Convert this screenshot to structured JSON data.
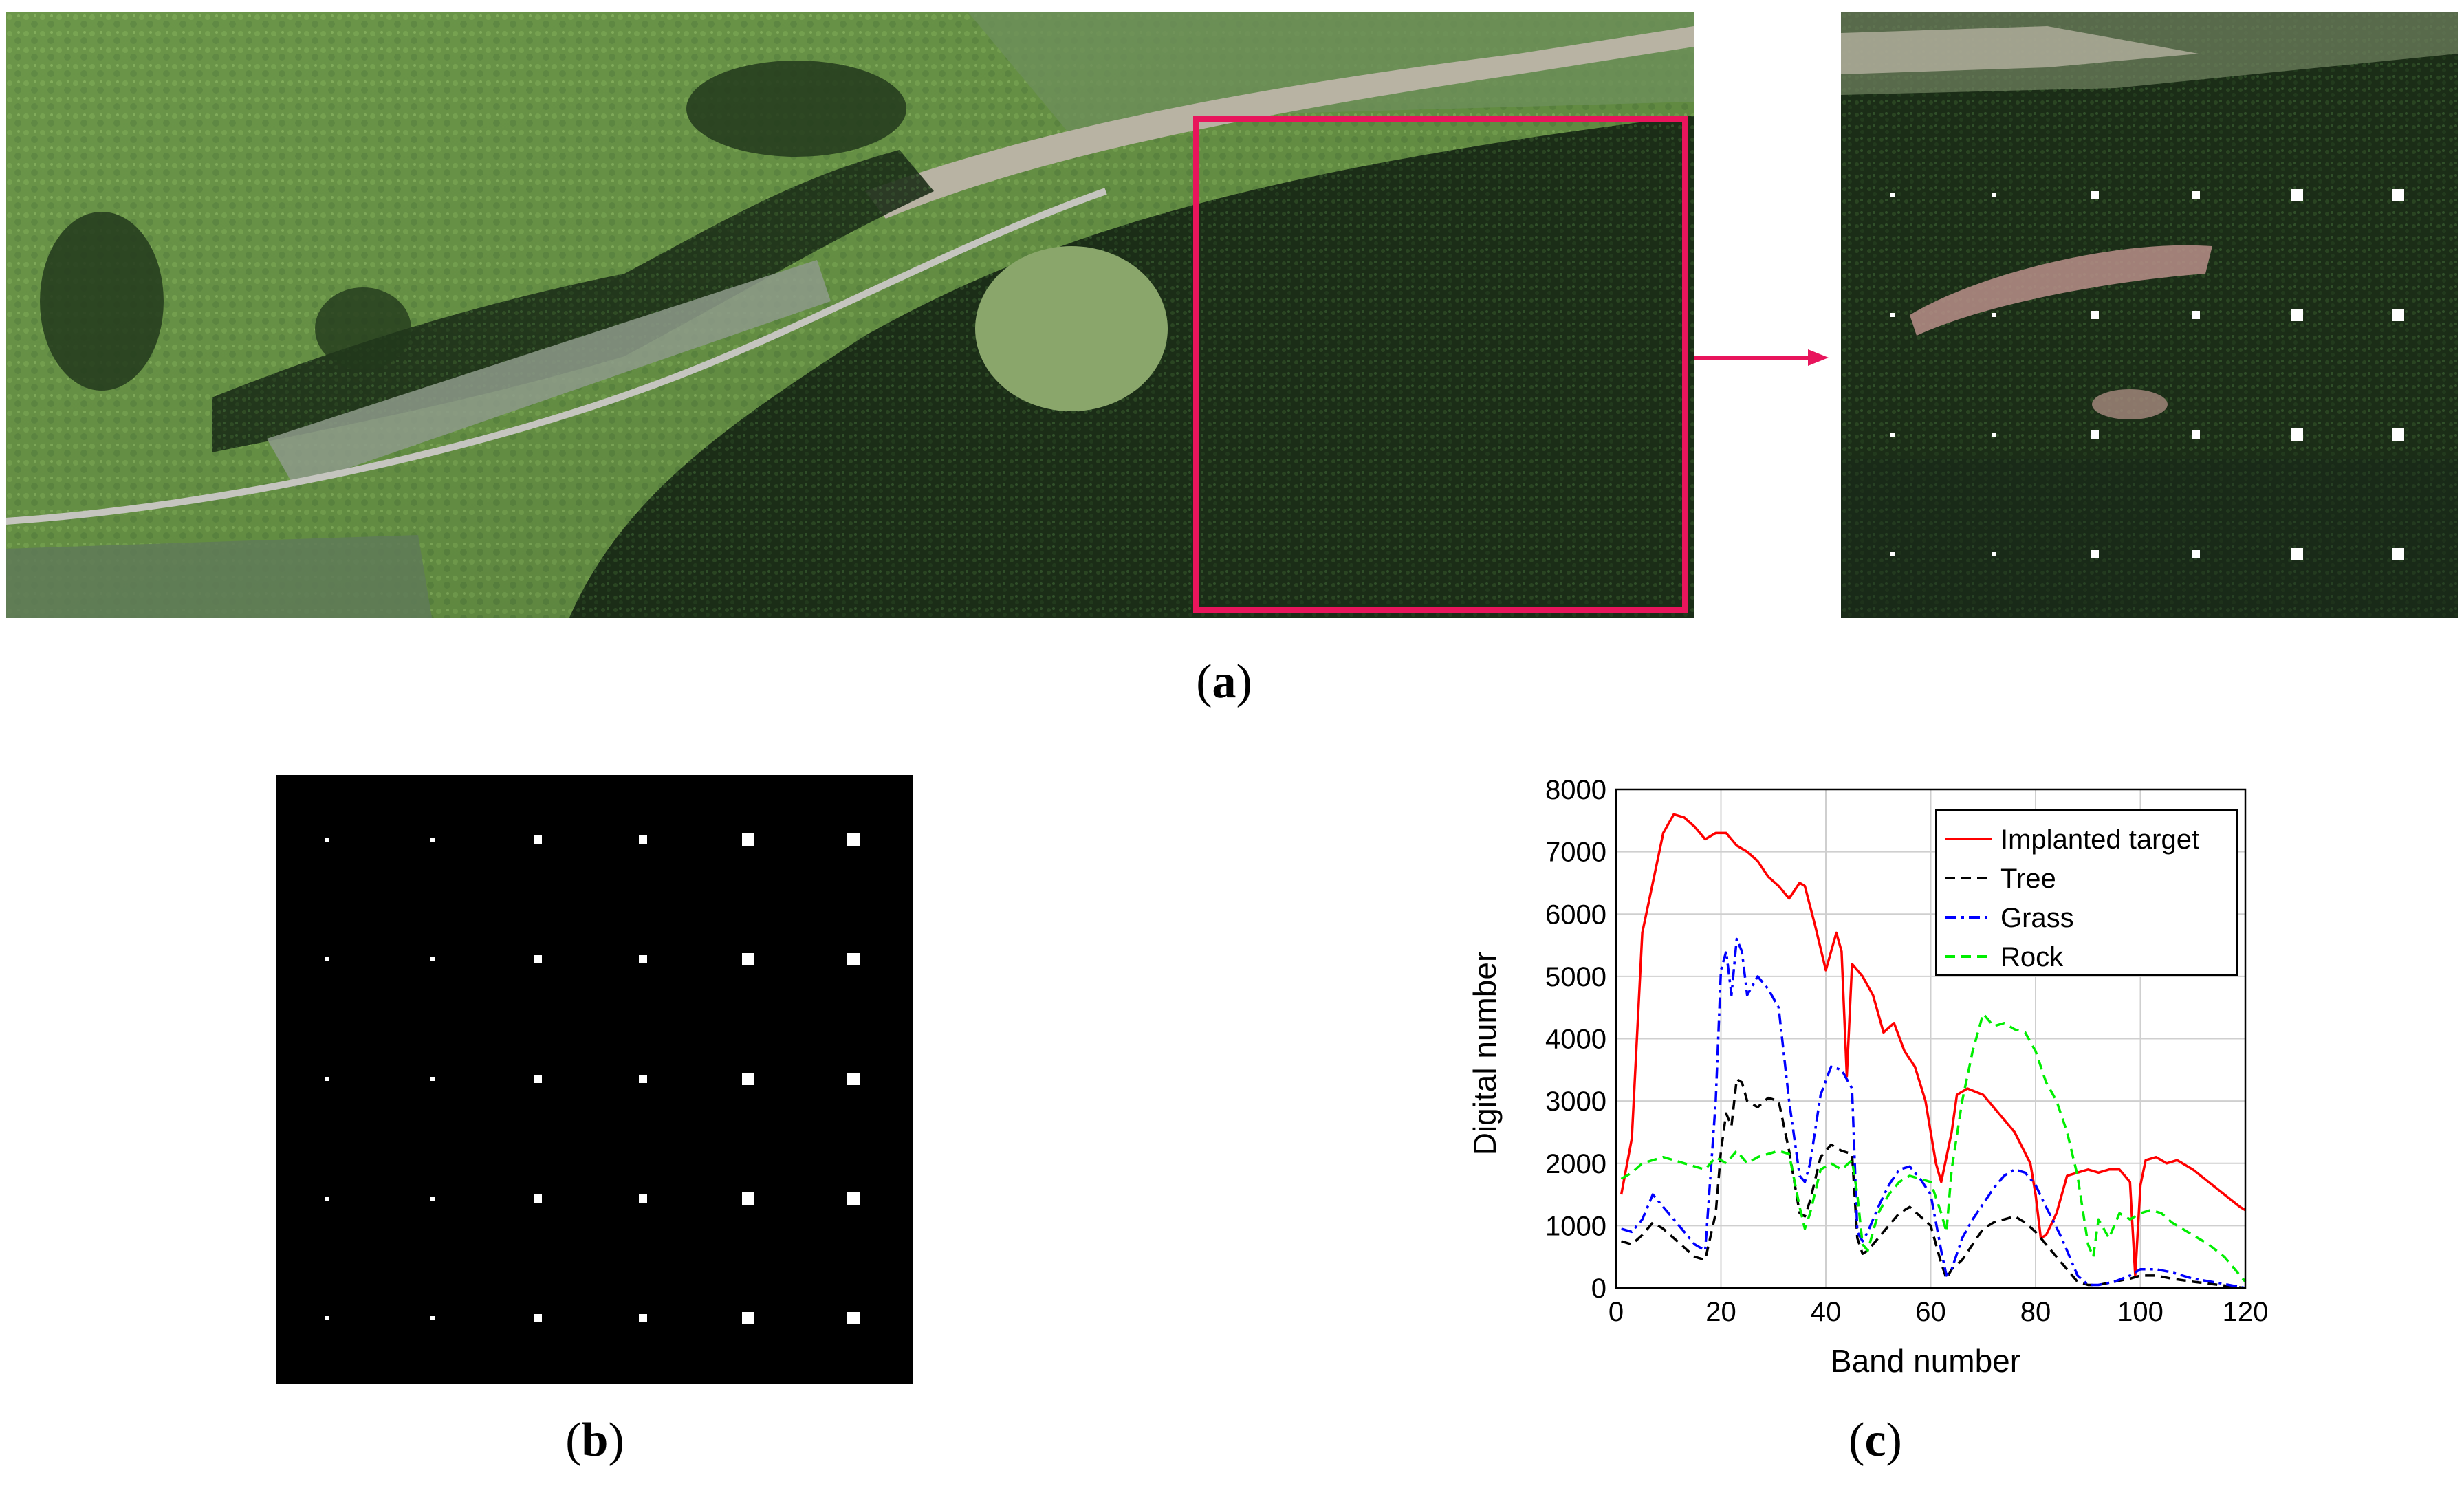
{
  "figure": {
    "panel_a_label": "a",
    "panel_b_label": "b",
    "panel_c_label": "c",
    "highlight_color": "#e8155c",
    "target_grid": {
      "rows": 5,
      "cols": 6,
      "sizes": [
        1,
        1,
        2,
        2,
        3,
        3
      ]
    }
  },
  "chart_data": {
    "type": "line",
    "xlabel": "Band number",
    "ylabel": "Digital number",
    "xlim": [
      0,
      120
    ],
    "ylim": [
      0,
      8000
    ],
    "xticks": [
      0,
      20,
      40,
      60,
      80,
      100,
      120
    ],
    "yticks": [
      0,
      1000,
      2000,
      3000,
      4000,
      5000,
      6000,
      7000,
      8000
    ],
    "grid": true,
    "legend_position": "top-right",
    "series": [
      {
        "name": "Implanted target",
        "color": "#ff0000",
        "dash": "solid",
        "x": [
          1,
          3,
          5,
          7,
          9,
          11,
          13,
          15,
          17,
          19,
          21,
          23,
          25,
          27,
          29,
          31,
          33,
          35,
          36,
          38,
          40,
          42,
          43,
          44,
          45,
          47,
          49,
          51,
          53,
          55,
          57,
          59,
          61,
          62,
          63,
          64,
          65,
          67,
          70,
          73,
          76,
          79,
          80,
          81,
          82,
          84,
          86,
          88,
          90,
          92,
          94,
          96,
          98,
          99,
          100,
          101,
          103,
          105,
          107,
          110,
          113,
          116,
          119,
          120
        ],
        "values": [
          1500,
          2400,
          5700,
          6500,
          7300,
          7600,
          7550,
          7400,
          7200,
          7300,
          7300,
          7100,
          7000,
          6850,
          6600,
          6450,
          6250,
          6500,
          6450,
          5800,
          5100,
          5700,
          5400,
          3400,
          5200,
          5000,
          4700,
          4100,
          4250,
          3800,
          3550,
          3000,
          2000,
          1700,
          2100,
          2500,
          3100,
          3200,
          3100,
          2800,
          2500,
          2000,
          1500,
          800,
          850,
          1200,
          1800,
          1850,
          1900,
          1850,
          1900,
          1900,
          1700,
          200,
          1650,
          2050,
          2100,
          2000,
          2050,
          1900,
          1700,
          1500,
          1300,
          1250
        ]
      },
      {
        "name": "Tree",
        "color": "#000000",
        "dash": "dashed",
        "x": [
          1,
          3,
          5,
          7,
          9,
          11,
          13,
          15,
          17,
          19,
          20,
          21,
          22,
          23,
          24,
          25,
          27,
          29,
          31,
          33,
          35,
          36,
          37,
          39,
          41,
          43,
          45,
          46,
          47,
          48,
          50,
          52,
          54,
          56,
          58,
          60,
          62,
          63,
          64,
          66,
          68,
          70,
          72,
          74,
          76,
          78,
          80,
          82,
          85,
          88,
          90,
          92,
          95,
          98,
          100,
          103,
          106,
          110,
          115,
          120
        ],
        "values": [
          750,
          700,
          850,
          1050,
          950,
          800,
          650,
          500,
          450,
          1200,
          2200,
          2800,
          2600,
          3350,
          3300,
          3000,
          2900,
          3050,
          3000,
          2200,
          1200,
          1150,
          1400,
          2100,
          2300,
          2200,
          2150,
          800,
          550,
          600,
          800,
          1000,
          1200,
          1300,
          1150,
          1000,
          400,
          150,
          300,
          450,
          700,
          950,
          1050,
          1100,
          1150,
          1050,
          900,
          700,
          400,
          100,
          50,
          50,
          100,
          150,
          200,
          200,
          150,
          100,
          50,
          0
        ]
      },
      {
        "name": "Grass",
        "color": "#0000ff",
        "dash": "dashdot",
        "x": [
          1,
          3,
          5,
          7,
          9,
          11,
          13,
          15,
          17,
          19,
          20,
          21,
          22,
          23,
          24,
          25,
          27,
          29,
          31,
          33,
          35,
          36,
          37,
          39,
          41,
          43,
          45,
          46,
          47,
          48,
          50,
          52,
          54,
          56,
          58,
          60,
          62,
          63,
          64,
          66,
          68,
          70,
          72,
          74,
          76,
          78,
          80,
          82,
          85,
          88,
          90,
          92,
          95,
          98,
          100,
          103,
          106,
          110,
          115,
          120
        ],
        "values": [
          950,
          900,
          1100,
          1500,
          1300,
          1100,
          900,
          700,
          600,
          3000,
          5100,
          5400,
          4700,
          5600,
          5400,
          4700,
          5000,
          4800,
          4500,
          3000,
          1800,
          1700,
          2000,
          3100,
          3550,
          3500,
          3200,
          900,
          750,
          900,
          1300,
          1650,
          1900,
          1950,
          1750,
          1500,
          600,
          200,
          300,
          800,
          1100,
          1350,
          1600,
          1800,
          1900,
          1850,
          1650,
          1300,
          800,
          200,
          50,
          50,
          100,
          200,
          300,
          300,
          250,
          150,
          80,
          0
        ]
      },
      {
        "name": "Rock",
        "color": "#00ee00",
        "dash": "dashed",
        "x": [
          1,
          3,
          5,
          7,
          9,
          11,
          13,
          15,
          17,
          19,
          21,
          23,
          25,
          27,
          29,
          31,
          33,
          35,
          36,
          37,
          39,
          41,
          43,
          45,
          46,
          47,
          48,
          50,
          52,
          54,
          56,
          58,
          60,
          62,
          63,
          64,
          66,
          68,
          70,
          72,
          74,
          76,
          78,
          80,
          82,
          84,
          86,
          88,
          90,
          91,
          92,
          94,
          96,
          98,
          100,
          102,
          104,
          106,
          108,
          110,
          113,
          116,
          120
        ],
        "values": [
          1750,
          1850,
          2000,
          2050,
          2100,
          2050,
          2000,
          1950,
          1900,
          2100,
          2000,
          2200,
          2000,
          2100,
          2150,
          2200,
          2150,
          1300,
          950,
          1200,
          1900,
          2000,
          1900,
          2050,
          1500,
          700,
          600,
          1200,
          1500,
          1700,
          1800,
          1750,
          1700,
          1200,
          900,
          1900,
          3000,
          3800,
          4400,
          4200,
          4250,
          4150,
          4100,
          3800,
          3300,
          3000,
          2500,
          1800,
          700,
          500,
          1100,
          800,
          1200,
          1100,
          1200,
          1250,
          1200,
          1050,
          950,
          850,
          700,
          500,
          100
        ]
      }
    ]
  }
}
